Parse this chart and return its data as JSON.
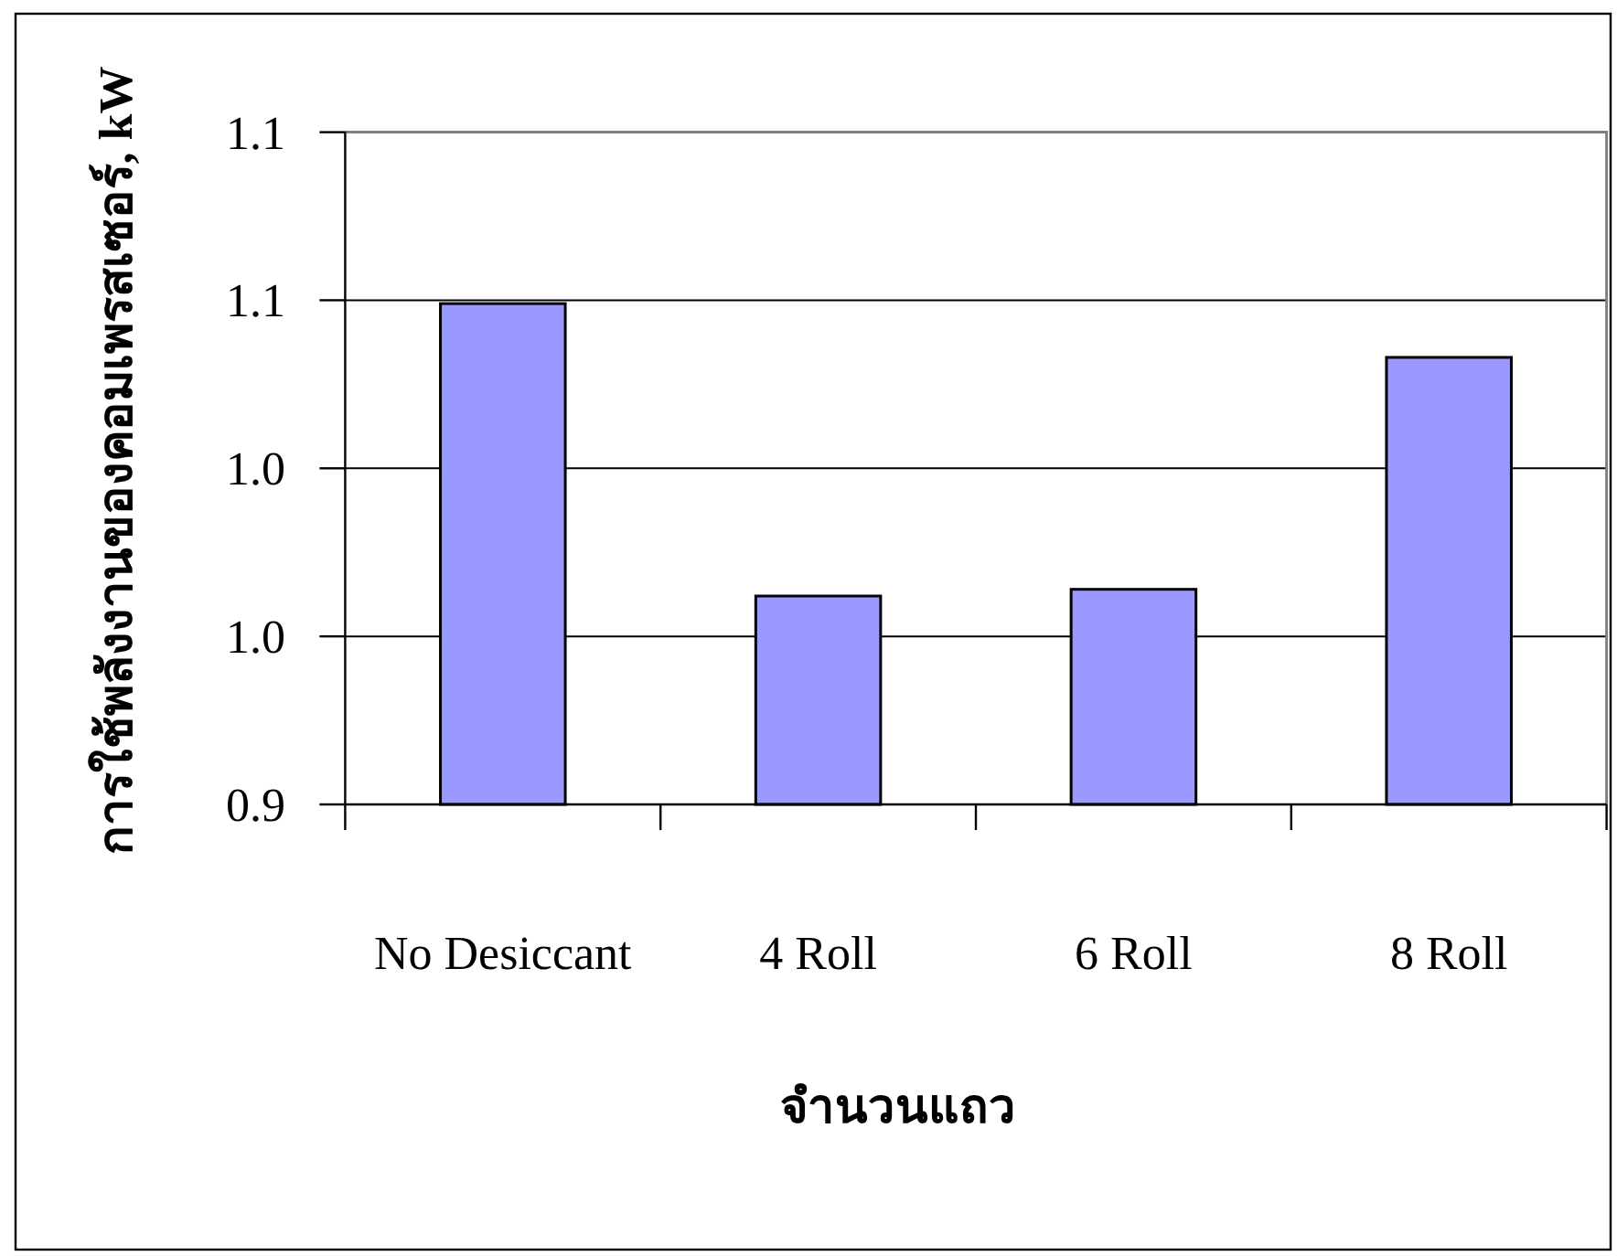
{
  "chart_data": {
    "type": "bar",
    "xlabel": "จำนวนแถว",
    "ylabel": "การใช้พลังงานของคอมเพรสเซอร์, kW",
    "categories": [
      "No Desiccant",
      "4 Roll",
      "6 Roll",
      "8 Roll"
    ],
    "values": [
      1.049,
      0.962,
      0.964,
      1.033
    ],
    "color": "#9999ff",
    "ylim": [
      0.9,
      1.1
    ],
    "yticks": [
      0.9,
      {
        "value": 0.95,
        "label": "1.0"
      },
      {
        "value": 1,
        "label": "1.0"
      },
      {
        "value": 1.05,
        "label": "1.1"
      },
      1.1
    ],
    "grid": "y"
  }
}
